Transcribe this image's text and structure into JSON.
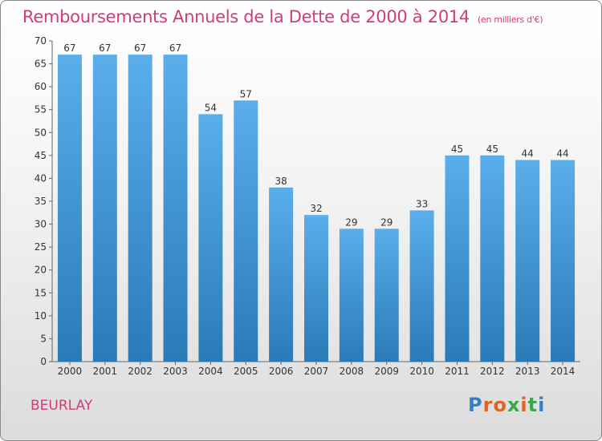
{
  "header": {
    "title": "Remboursements Annuels de la Dette de 2000 à 2014",
    "unit": "(en milliers d'€)"
  },
  "footer": {
    "commune": "BEURLAY",
    "logo": "Proxiti",
    "logo_colors": [
      "#3a7ec2",
      "#e0641e",
      "#e0641e",
      "#3aa84a",
      "#e0641e",
      "#3aa84a",
      "#3a7ec2"
    ]
  },
  "chart_data": {
    "type": "bar",
    "title": "Remboursements Annuels de la Dette de 2000 à 2014",
    "subtitle": "(en milliers d'€)",
    "xlabel": "",
    "ylabel": "",
    "ylim": [
      0,
      70
    ],
    "ytick_step": 5,
    "categories": [
      "2000",
      "2001",
      "2002",
      "2003",
      "2004",
      "2005",
      "2006",
      "2007",
      "2008",
      "2009",
      "2010",
      "2011",
      "2012",
      "2013",
      "2014"
    ],
    "values": [
      67,
      67,
      67,
      67,
      54,
      57,
      38,
      32,
      29,
      29,
      33,
      45,
      45,
      44,
      44
    ],
    "bar_color_top": "#5aaeea",
    "bar_color_bottom": "#2a7ab8",
    "grid": false
  }
}
